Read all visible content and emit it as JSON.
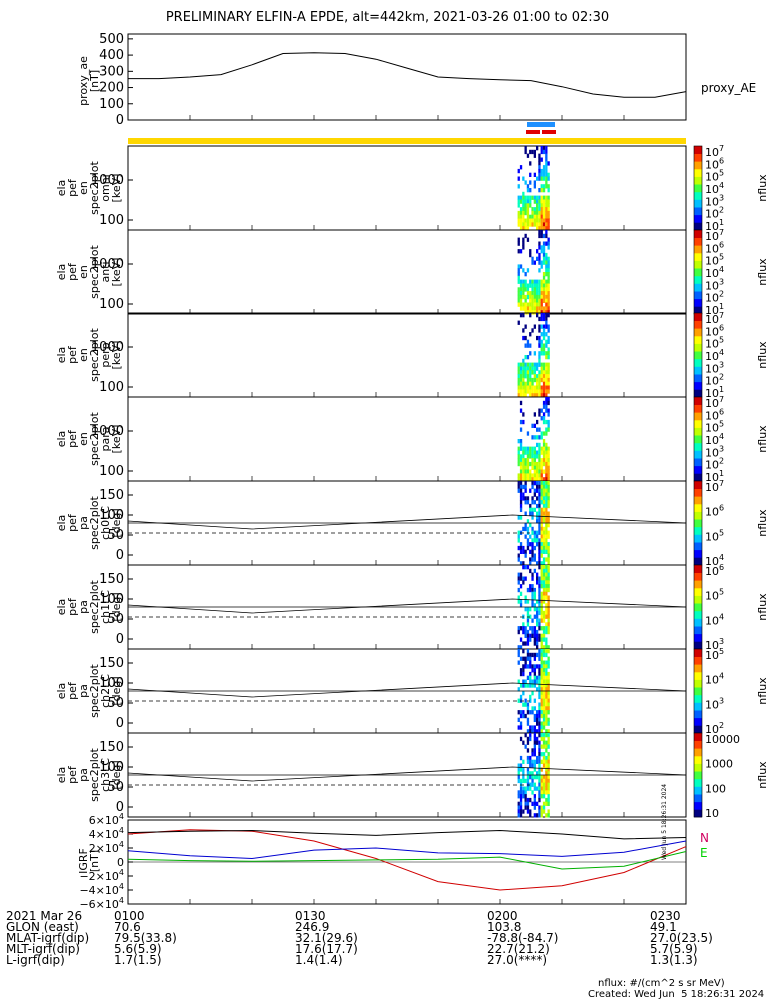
{
  "title": "PRELIMINARY ELFIN-A EPDE, alt=442km, 2021-03-26 01:00 to 02:30",
  "colors": {
    "ae_line": "#000000",
    "bar_yellow": "#ffd700",
    "bar_blue": "#1e90ff",
    "bar_red": "#e00000",
    "grf_n": "#d00000",
    "grf_e": "#00b000",
    "grf_blue": "#0000d0",
    "grf_black": "#000000",
    "n_label": "#d00060",
    "e_label": "#00d000"
  },
  "panels": [
    {
      "ylabel": "ela\npef\nen\nspec2plot\nomni\n[keV]",
      "cb_label": "nflux",
      "cb_ticks": [
        "10^7",
        "10^6",
        "10^5",
        "10^4",
        "10^3",
        "10^2",
        "10^1"
      ],
      "ticks": [
        "1000",
        "100"
      ]
    },
    {
      "ylabel": "ela\npef\nen\nspec2plot\nanti\n[keV]",
      "cb_label": "nflux",
      "cb_ticks": [
        "10^7",
        "10^6",
        "10^5",
        "10^4",
        "10^3",
        "10^2",
        "10^1"
      ],
      "ticks": [
        "1000",
        "100"
      ]
    },
    {
      "ylabel": "ela\npef\nen\nspec2plot\nperp\n[keV]",
      "cb_label": "nflux",
      "cb_ticks": [
        "10^7",
        "10^6",
        "10^5",
        "10^4",
        "10^3",
        "10^2",
        "10^1"
      ],
      "ticks": [
        "1000",
        "100"
      ]
    },
    {
      "ylabel": "ela\npef\nen\nspec2plot\npara\n[keV]",
      "cb_label": "nflux",
      "cb_ticks": [
        "10^7",
        "10^6",
        "10^5",
        "10^4",
        "10^3",
        "10^2",
        "10^1"
      ],
      "ticks": [
        "1000",
        "100"
      ]
    },
    {
      "ylabel": "ela\npef\npa\nspec2plot\nch0LC\n[deg]",
      "cb_label": "nflux",
      "cb_ticks": [
        "10^7",
        "10^6",
        "10^5",
        "10^4"
      ],
      "ticks": [
        "150",
        "100",
        "50",
        "0"
      ]
    },
    {
      "ylabel": "ela\npef\npa\nspec2plot\nch1LC\n[deg]",
      "cb_label": "nflux",
      "cb_ticks": [
        "10^6",
        "10^5",
        "10^4",
        "10^3"
      ],
      "ticks": [
        "150",
        "100",
        "50",
        "0"
      ]
    },
    {
      "ylabel": "ela\npef\npa\nspec2plot\nch2LC\n[deg]",
      "cb_label": "nflux",
      "cb_ticks": [
        "10^5",
        "10^4",
        "10^3",
        "10^2"
      ],
      "ticks": [
        "150",
        "100",
        "50",
        "0"
      ]
    },
    {
      "ylabel": "ela\npef\npa\nspec2plot\nch3LC\n[deg]",
      "cb_label": "nflux",
      "cb_ticks": [
        "10000",
        "1000",
        "100",
        "10"
      ],
      "ticks": [
        "150",
        "100",
        "50",
        "0"
      ]
    }
  ],
  "chart_data": [
    {
      "type": "line",
      "title": "PRELIMINARY ELFIN-A EPDE, alt=442km, 2021-03-26 01:00 to 02:30",
      "ylabel": "proxy_ae [nT]",
      "series": [
        {
          "name": "proxy_AE",
          "x": [
            "01:00",
            "01:05",
            "01:10",
            "01:15",
            "01:20",
            "01:25",
            "01:30",
            "01:35",
            "01:40",
            "01:45",
            "01:50",
            "01:55",
            "02:00",
            "02:05",
            "02:10",
            "02:15",
            "02:20",
            "02:25",
            "02:30"
          ],
          "values": [
            255,
            255,
            265,
            280,
            340,
            410,
            415,
            410,
            375,
            320,
            265,
            255,
            248,
            243,
            205,
            160,
            140,
            140,
            175
          ]
        }
      ],
      "ylim": [
        0,
        530
      ],
      "yticks": [
        "500",
        "400",
        "300",
        "200",
        "100",
        "0"
      ]
    },
    {
      "type": "heatmap",
      "panels": [
        "omni",
        "anti",
        "perp",
        "para",
        "ch0LC",
        "ch1LC",
        "ch2LC",
        "ch3LC"
      ],
      "data_interval": [
        "02:03",
        "02:08"
      ],
      "zlabel": "nflux"
    },
    {
      "type": "line",
      "ylabel": "IGRF [nT]",
      "ylim": [
        -60000,
        60000
      ],
      "yticks": [
        "6×10^4",
        "4×10^4",
        "2×10^4",
        "0",
        "−2×10^4",
        "−4×10^4",
        "−6×10^4"
      ],
      "x": [
        "01:00",
        "01:10",
        "01:20",
        "01:30",
        "01:40",
        "01:50",
        "02:00",
        "02:10",
        "02:20",
        "02:30"
      ],
      "series": [
        {
          "name": "N",
          "values": [
            40000,
            46000,
            44000,
            30000,
            5000,
            -28000,
            -40000,
            -34000,
            -15000,
            22000
          ]
        },
        {
          "name": "E",
          "values": [
            4000,
            2000,
            1000,
            2000,
            3000,
            4000,
            7000,
            -10000,
            -6000,
            15000
          ]
        },
        {
          "name": "",
          "values": [
            16000,
            9000,
            5000,
            17000,
            20000,
            13000,
            12000,
            8000,
            14000,
            30000
          ]
        },
        {
          "name": "",
          "values": [
            42000,
            44000,
            45000,
            41000,
            38000,
            42000,
            45000,
            40000,
            33000,
            35000
          ]
        }
      ],
      "legend": [
        "N",
        "E"
      ]
    }
  ],
  "ae_legend": "proxy_AE",
  "ae_ylabel": "proxy_ae\n[nT]",
  "igrf_ylabel": "IGRF\n[nT]",
  "igrf_legend": {
    "n": "N",
    "e": "E"
  },
  "footer_rows": [
    {
      "label": "2021 Mar 26",
      "values": [
        "0100",
        "0130",
        "0200",
        "0230"
      ]
    },
    {
      "label": "GLON (east)",
      "values": [
        "70.6",
        "246.9",
        "103.8",
        "49.1"
      ]
    },
    {
      "label": "MLAT-igrf(dip)",
      "values": [
        "79.5(33.8)",
        "32.1(29.6)",
        "-78.8(-84.7)",
        "27.0(23.5)"
      ]
    },
    {
      "label": "MLT-igrf(dip)",
      "values": [
        "5.6(5.9)",
        "17.6(17.7)",
        "22.7(21.2)",
        "5.7(5.9)"
      ]
    },
    {
      "label": "L-igrf(dip)",
      "values": [
        "1.7(1.5)",
        "1.4(1.4)",
        "27.0(****)",
        "1.3(1.3)"
      ]
    }
  ],
  "nflux_units": "nflux: #/(cm^2 s sr MeV)",
  "created": "Created: Wed Jun  5 18:26:31 2024",
  "stamp": "Wed Jun 5 18:26:31 2024"
}
